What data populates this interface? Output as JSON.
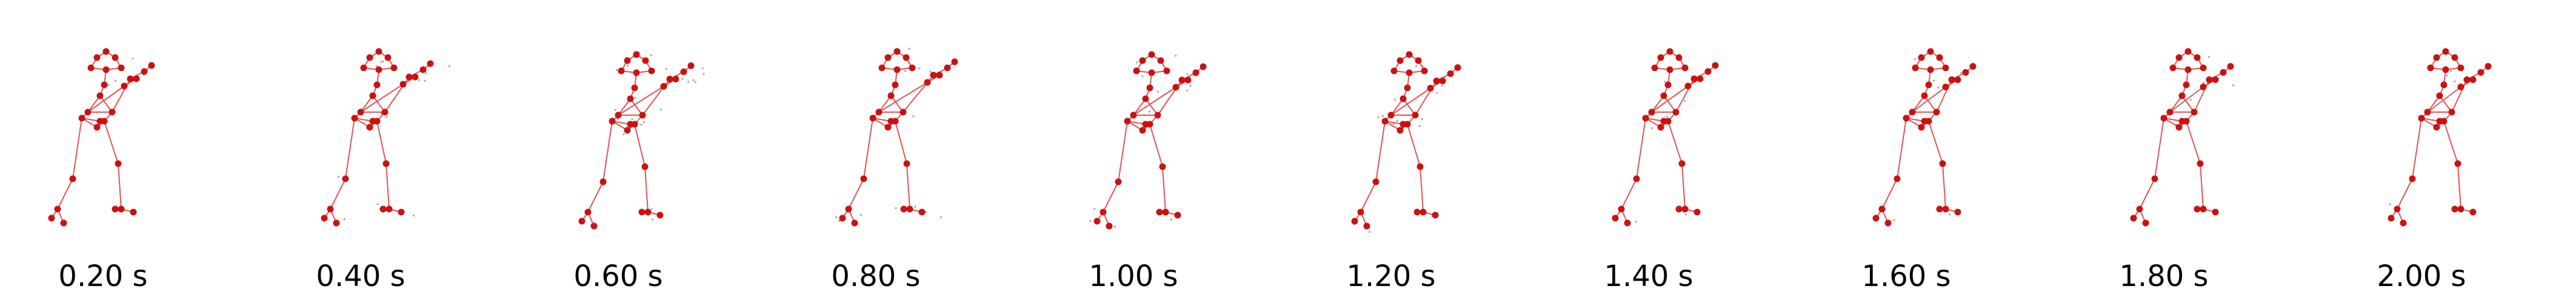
{
  "frames": [
    {
      "label": "0.20 s",
      "pose": "boxer-a",
      "trail": "light"
    },
    {
      "label": "0.40 s",
      "pose": "boxer-b",
      "trail": "medium"
    },
    {
      "label": "0.60 s",
      "pose": "boxer-c",
      "trail": "heavy"
    },
    {
      "label": "0.80 s",
      "pose": "boxer-d",
      "trail": "medium"
    },
    {
      "label": "1.00 s",
      "pose": "boxer-e",
      "trail": "medium"
    },
    {
      "label": "1.20 s",
      "pose": "boxer-f",
      "trail": "medium"
    },
    {
      "label": "1.40 s",
      "pose": "boxer-g",
      "trail": "light"
    },
    {
      "label": "1.60 s",
      "pose": "boxer-h",
      "trail": "light"
    },
    {
      "label": "1.80 s",
      "pose": "boxer-h",
      "trail": "light"
    },
    {
      "label": "2.00 s",
      "pose": "boxer-h",
      "trail": "light"
    }
  ],
  "colors": {
    "joint": "#cc1111",
    "bone": "#e05555",
    "trail": "#5a5a7a",
    "label": "#000000"
  },
  "icons": {
    "skeleton": "skeleton-icon"
  }
}
